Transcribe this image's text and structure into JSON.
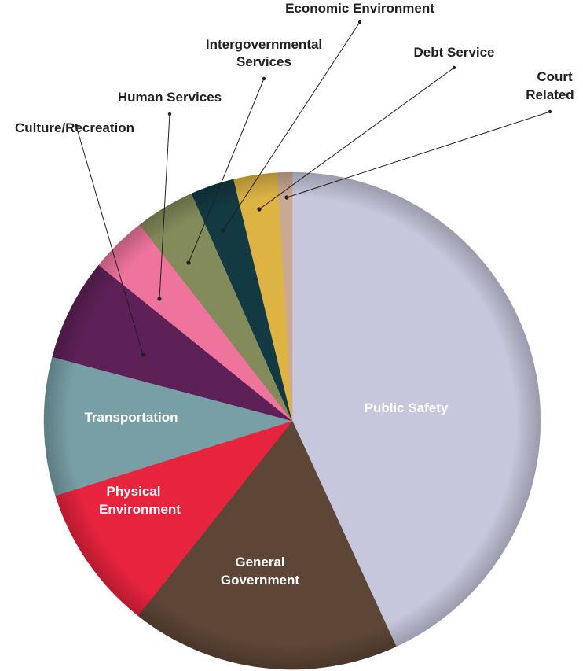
{
  "chart_data": {
    "type": "pie",
    "title": "",
    "start_angle_deg": 0,
    "direction": "clockwise",
    "slices": [
      {
        "name": "Public Safety",
        "value": 45.5,
        "color": "#c6c6dc",
        "label_inside": true
      },
      {
        "name": "General Government",
        "value": 18.5,
        "color": "#5e4636",
        "label_inside": true
      },
      {
        "name": "Physical Environment",
        "value": 10.0,
        "color": "#e8233e",
        "label_inside": true
      },
      {
        "name": "Transportation",
        "value": 9.5,
        "color": "#789ea6",
        "label_inside": true
      },
      {
        "name": "Culture/Recreation",
        "value": 7.0,
        "color": "#5e2157",
        "label_inside": false
      },
      {
        "name": "Human Services",
        "value": 3.9,
        "color": "#ee739d",
        "label_inside": false
      },
      {
        "name": "Intergovernmental Services",
        "value": 4.1,
        "color": "#848b5b",
        "label_inside": false
      },
      {
        "name": "Economic Environment",
        "value": 3.0,
        "color": "#133943",
        "label_inside": false
      },
      {
        "name": "Debt Service",
        "value": 3.0,
        "color": "#ddb444",
        "label_inside": false
      },
      {
        "name": "Court Related",
        "value": 1.0,
        "color": "#c9a993",
        "label_inside": false
      }
    ]
  }
}
